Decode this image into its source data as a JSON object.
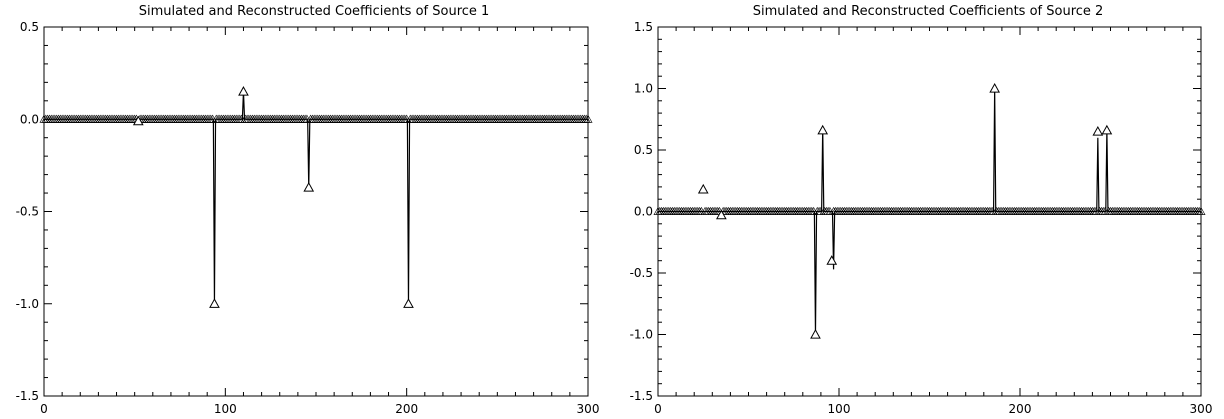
{
  "chart_data": [
    {
      "type": "line",
      "title": "Simulated and Reconstructed Coefficients of Source 1",
      "xlabel": "",
      "ylabel": "",
      "xlim": [
        0,
        300
      ],
      "ylim": [
        -1.5,
        0.5
      ],
      "x_ticks": [
        0,
        100,
        200,
        300
      ],
      "x_tick_labels": [
        "0",
        "100",
        "200",
        "300"
      ],
      "y_ticks": [
        0.5,
        0.0,
        -0.5,
        -1.0,
        -1.5
      ],
      "y_tick_labels": [
        "0.5",
        "0.0",
        "-0.5",
        "-1.0",
        "-1.5"
      ],
      "grid": false,
      "baseline": 0.0,
      "series": [
        {
          "style": "line",
          "spikes": [
            [
              94,
              -1.0
            ],
            [
              110,
              0.15
            ],
            [
              146,
              -0.37
            ],
            [
              201,
              -1.0
            ]
          ]
        },
        {
          "style": "triangle-markers",
          "spikes": [
            [
              52,
              -0.01
            ],
            [
              94,
              -1.0
            ],
            [
              110,
              0.15
            ],
            [
              146,
              -0.37
            ],
            [
              201,
              -1.0
            ]
          ]
        }
      ]
    },
    {
      "type": "line",
      "title": "Simulated and Reconstructed Coefficients of Source 2",
      "xlabel": "",
      "ylabel": "",
      "xlim": [
        0,
        300
      ],
      "ylim": [
        -1.5,
        1.5
      ],
      "x_ticks": [
        0,
        100,
        200,
        300
      ],
      "x_tick_labels": [
        "0",
        "100",
        "200",
        "300"
      ],
      "y_ticks": [
        1.5,
        1.0,
        0.5,
        0.0,
        -0.5,
        -1.0,
        -1.5
      ],
      "y_tick_labels": [
        "1.5",
        "1.0",
        "0.5",
        "0.0",
        "-0.5",
        "-1.0",
        "-1.5"
      ],
      "grid": false,
      "baseline": 0.0,
      "series": [
        {
          "style": "line",
          "spikes": [
            [
              87,
              -1.0
            ],
            [
              91,
              0.68
            ],
            [
              97,
              -0.47
            ],
            [
              186,
              1.0
            ],
            [
              243,
              0.6
            ],
            [
              248,
              0.67
            ]
          ]
        },
        {
          "style": "triangle-markers",
          "spikes": [
            [
              25,
              0.18
            ],
            [
              35,
              -0.03
            ],
            [
              87,
              -1.0
            ],
            [
              91,
              0.66
            ],
            [
              96,
              -0.4
            ],
            [
              186,
              1.0
            ],
            [
              243,
              0.65
            ],
            [
              248,
              0.66
            ]
          ]
        }
      ]
    }
  ]
}
